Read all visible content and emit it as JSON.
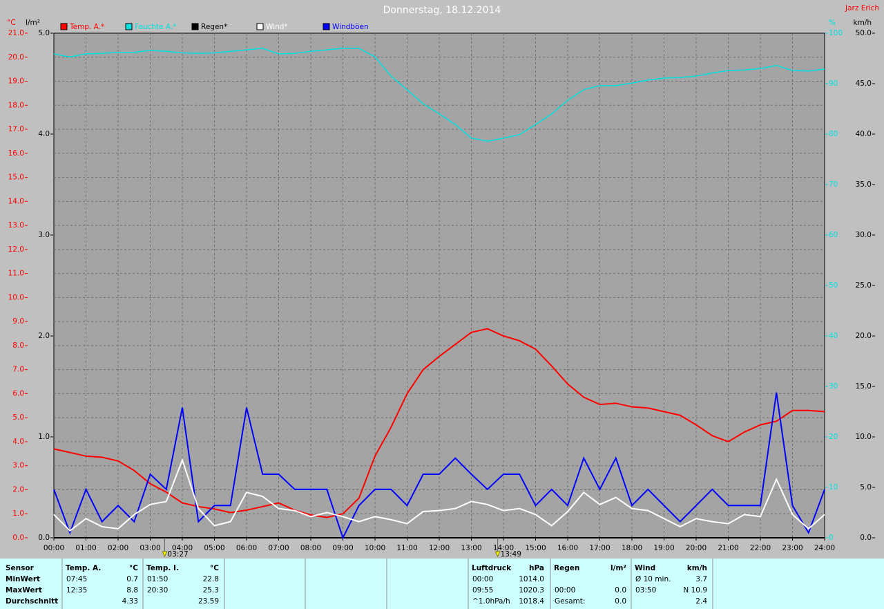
{
  "header": {
    "title": "Donnerstag, 18.12.2014",
    "author": "Jarz Erich"
  },
  "chart_data": {
    "type": "line",
    "x": [
      0,
      0.5,
      1,
      1.5,
      2,
      2.5,
      3,
      3.5,
      4,
      4.5,
      5,
      5.5,
      6,
      6.5,
      7,
      7.5,
      8,
      8.5,
      9,
      9.5,
      10,
      10.5,
      11,
      11.5,
      12,
      12.5,
      13,
      13.5,
      14,
      14.5,
      15,
      15.5,
      16,
      16.5,
      17,
      17.5,
      18,
      18.5,
      19,
      19.5,
      20,
      20.5,
      21,
      21.5,
      22,
      22.5,
      23,
      23.5,
      24
    ],
    "xlim": [
      0,
      24
    ],
    "xticks": [
      {
        "value": 0,
        "label": "00:00"
      },
      {
        "value": 1,
        "label": "01:00"
      },
      {
        "value": 2,
        "label": "02:00"
      },
      {
        "value": 3,
        "label": "03:00"
      },
      {
        "value": 4,
        "label": "04:00"
      },
      {
        "value": 5,
        "label": "05:00"
      },
      {
        "value": 6,
        "label": "06:00"
      },
      {
        "value": 7,
        "label": "07:00"
      },
      {
        "value": 8,
        "label": "08:00"
      },
      {
        "value": 9,
        "label": "09:00"
      },
      {
        "value": 10,
        "label": "10:00"
      },
      {
        "value": 11,
        "label": "11:00"
      },
      {
        "value": 12,
        "label": "12:00"
      },
      {
        "value": 13,
        "label": "13:00"
      },
      {
        "value": 14,
        "label": "14:00"
      },
      {
        "value": 15,
        "label": "15:00"
      },
      {
        "value": 16,
        "label": "16:00"
      },
      {
        "value": 17,
        "label": "17:00"
      },
      {
        "value": 18,
        "label": "18:00"
      },
      {
        "value": 19,
        "label": "19:00"
      },
      {
        "value": 20,
        "label": "20:00"
      },
      {
        "value": 21,
        "label": "21:00"
      },
      {
        "value": 22,
        "label": "22:00"
      },
      {
        "value": 23,
        "label": "23:00"
      },
      {
        "value": 24,
        "label": "24:00"
      }
    ],
    "y_unit": "°C",
    "y_color": "#ff0000",
    "ylim": [
      0,
      21
    ],
    "yticks": [
      {
        "value": 0,
        "label": "0.0"
      },
      {
        "value": 1,
        "label": "1.0"
      },
      {
        "value": 2,
        "label": "2.0"
      },
      {
        "value": 3,
        "label": "3.0"
      },
      {
        "value": 4,
        "label": "4.0"
      },
      {
        "value": 5,
        "label": "5.0"
      },
      {
        "value": 6,
        "label": "6.0"
      },
      {
        "value": 7,
        "label": "7.0"
      },
      {
        "value": 8,
        "label": "8.0"
      },
      {
        "value": 9,
        "label": "9.0"
      },
      {
        "value": 10,
        "label": "10.0"
      },
      {
        "value": 11,
        "label": "11.0"
      },
      {
        "value": 12,
        "label": "12.0"
      },
      {
        "value": 13,
        "label": "13.0"
      },
      {
        "value": 14,
        "label": "14.0"
      },
      {
        "value": 15,
        "label": "15.0"
      },
      {
        "value": 16,
        "label": "16.0"
      },
      {
        "value": 17,
        "label": "17.0"
      },
      {
        "value": 18,
        "label": "18.0"
      },
      {
        "value": 19,
        "label": "19.0"
      },
      {
        "value": 20,
        "label": "20.0"
      },
      {
        "value": 21,
        "label": "21.0"
      }
    ],
    "y2_unit": "l/m²",
    "y2_color": "#000000",
    "y2lim": [
      0,
      5
    ],
    "y2ticks": [
      {
        "value": 0,
        "label": "0.0"
      },
      {
        "value": 1,
        "label": "1.0"
      },
      {
        "value": 2,
        "label": "2.0"
      },
      {
        "value": 3,
        "label": "3.0"
      },
      {
        "value": 4,
        "label": "4.0"
      },
      {
        "value": 5,
        "label": "5.0"
      }
    ],
    "y3_unit": "%",
    "y3_color": "#00e0e0",
    "y3lim": [
      0,
      100
    ],
    "y3ticks": [
      0,
      10,
      20,
      30,
      40,
      50,
      60,
      70,
      80,
      90,
      100
    ],
    "y4_unit": "km/h",
    "y4_color": "#000000",
    "y4lim": [
      0,
      50
    ],
    "y4ticks": [
      {
        "value": 0,
        "label": "0.0"
      },
      {
        "value": 5,
        "label": "5.0"
      },
      {
        "value": 10,
        "label": "10.0"
      },
      {
        "value": 15,
        "label": "15.0"
      },
      {
        "value": 20,
        "label": "20.0"
      },
      {
        "value": 25,
        "label": "25.0"
      },
      {
        "value": 30,
        "label": "30.0"
      },
      {
        "value": 35,
        "label": "35.0"
      },
      {
        "value": 40,
        "label": "40.0"
      },
      {
        "value": 45,
        "label": "45.0"
      },
      {
        "value": 50,
        "label": "50.0"
      }
    ],
    "grid": true,
    "series": [
      {
        "name": "Temp. A.*",
        "color": "#ff0000",
        "axis": "y",
        "values": [
          3.7,
          3.55,
          3.4,
          3.35,
          3.2,
          2.8,
          2.25,
          1.9,
          1.45,
          1.3,
          1.2,
          1.05,
          1.15,
          1.3,
          1.45,
          1.15,
          0.95,
          0.85,
          1.0,
          1.65,
          3.4,
          4.6,
          6.0,
          7.0,
          7.55,
          8.05,
          8.55,
          8.7,
          8.4,
          8.2,
          7.85,
          7.15,
          6.4,
          5.85,
          5.55,
          5.6,
          5.45,
          5.4,
          5.25,
          5.1,
          4.7,
          4.25,
          4.0,
          4.4,
          4.7,
          4.85,
          5.3,
          5.3,
          5.25
        ]
      },
      {
        "name": "Feuchte A.*",
        "color": "#00e0e0",
        "axis": "y3",
        "values": [
          95.9,
          95.3,
          95.9,
          96,
          96.2,
          96.2,
          96.6,
          96.4,
          96.1,
          96,
          96.1,
          96.4,
          96.7,
          97,
          95.9,
          96,
          96.4,
          96.7,
          97,
          97,
          95.3,
          91.5,
          88.8,
          86,
          84,
          81.9,
          79.2,
          78.6,
          79.2,
          79.9,
          81.9,
          84,
          86.7,
          88.8,
          89.6,
          89.6,
          90.1,
          90.7,
          91.1,
          91.2,
          91.5,
          92.1,
          92.6,
          92.7,
          93,
          93.6,
          92.6,
          92.5,
          92.9
        ]
      },
      {
        "name": "Regen*",
        "color": "#000000",
        "axis": "y2",
        "values": [
          0,
          0,
          0,
          0,
          0,
          0,
          0,
          0,
          0,
          0,
          0,
          0,
          0,
          0,
          0,
          0,
          0,
          0,
          0,
          0,
          0,
          0,
          0,
          0,
          0,
          0,
          0,
          0,
          0,
          0,
          0,
          0,
          0,
          0,
          0,
          0,
          0,
          0,
          0,
          0,
          0,
          0,
          0,
          0,
          0,
          0,
          0,
          0,
          0
        ]
      },
      {
        "name": "Wind*",
        "color": "#ffffff",
        "axis": "y4",
        "values": [
          2.3,
          0.7,
          1.9,
          1.1,
          0.9,
          2.3,
          3.3,
          3.6,
          7.7,
          2.9,
          1.2,
          1.6,
          4.5,
          4.1,
          2.9,
          2.7,
          2.1,
          2.5,
          2.1,
          1.6,
          2.1,
          1.8,
          1.4,
          2.6,
          2.7,
          2.9,
          3.6,
          3.3,
          2.7,
          2.9,
          2.3,
          1.2,
          2.6,
          4.5,
          3.3,
          4.0,
          2.9,
          2.7,
          1.9,
          1.1,
          1.9,
          1.6,
          1.4,
          2.3,
          2.1,
          5.8,
          2.3,
          0.9,
          2.3
        ]
      },
      {
        "name": "Windböen",
        "color": "#0000ff",
        "axis": "y4",
        "values": [
          4.8,
          0.5,
          4.8,
          1.6,
          3.2,
          1.6,
          6.3,
          4.8,
          12.9,
          1.6,
          3.2,
          3.2,
          12.9,
          6.3,
          6.3,
          4.8,
          4.8,
          4.8,
          0,
          3.2,
          4.8,
          4.8,
          3.2,
          6.3,
          6.3,
          7.9,
          6.3,
          4.8,
          6.3,
          6.3,
          3.2,
          4.8,
          3.2,
          7.9,
          4.8,
          7.9,
          3.2,
          4.8,
          3.2,
          1.6,
          3.2,
          4.8,
          3.2,
          3.2,
          3.2,
          14.4,
          3.2,
          0.5,
          4.8
        ]
      }
    ],
    "annotations": [
      {
        "label": "03:27",
        "x": 3.45
      },
      {
        "label": "13:49",
        "x": 13.82
      }
    ]
  },
  "stats": {
    "row_labels": [
      "Sensor",
      "MinWert",
      "MaxWert",
      "Durchschnitt"
    ],
    "groups": [
      {
        "name": "Temp. A.",
        "unit": "°C",
        "rows": [
          [
            "07:45",
            "0.7"
          ],
          [
            "12:35",
            "8.8"
          ],
          [
            null,
            "4.33"
          ]
        ]
      },
      {
        "name": "Temp. I.",
        "unit": "°C",
        "rows": [
          [
            "01:50",
            "22.8"
          ],
          [
            "20:30",
            "25.3"
          ],
          [
            null,
            "23.59"
          ]
        ]
      },
      {
        "name": "Luftdruck",
        "unit": "hPa",
        "rows": [
          [
            "00:00",
            "1014.0"
          ],
          [
            "09:55",
            "1020.3"
          ],
          [
            "^1.0hPa/h",
            "1018.4"
          ]
        ]
      },
      {
        "name": "Regen",
        "unit": "l/m²",
        "rows": [
          [
            null,
            null
          ],
          [
            "00:00",
            "0.0"
          ],
          [
            "Gesamt:",
            "0.0"
          ]
        ]
      },
      {
        "name": "Wind",
        "unit": "km/h",
        "rows": [
          [
            "Ø 10 min.",
            "3.7"
          ],
          [
            "03:50",
            "N 10.9"
          ],
          [
            null,
            "2.4"
          ]
        ]
      }
    ]
  }
}
